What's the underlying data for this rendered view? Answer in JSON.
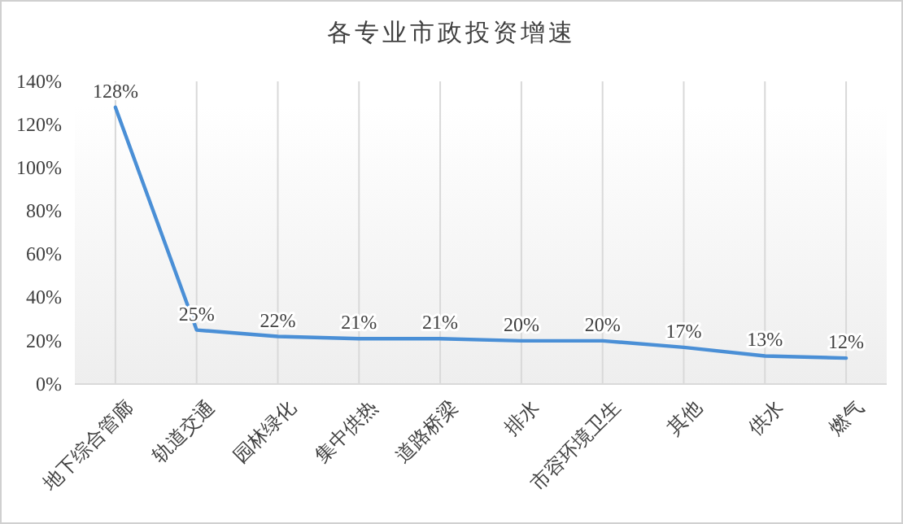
{
  "chart_data": {
    "type": "line",
    "title": "各专业市政投资增速",
    "categories": [
      "地下综合管廊",
      "轨道交通",
      "园林绿化",
      "集中供热",
      "道路桥梁",
      "排水",
      "市容环境卫生",
      "其他",
      "供水",
      "燃气"
    ],
    "series": [
      {
        "color": "#4a8fd6",
        "values": [
          128,
          25,
          22,
          21,
          21,
          20,
          20,
          17,
          13,
          12
        ],
        "value_labels": [
          "128%",
          "25%",
          "22%",
          "21%",
          "21%",
          "20%",
          "20%",
          "17%",
          "13%",
          "12%"
        ]
      }
    ],
    "ylim": [
      0,
      140
    ],
    "yticks": [
      {
        "value": 0,
        "label": "0%"
      },
      {
        "value": 20,
        "label": "20%"
      },
      {
        "value": 40,
        "label": "40%"
      },
      {
        "value": 60,
        "label": "60%"
      },
      {
        "value": 80,
        "label": "80%"
      },
      {
        "value": 100,
        "label": "100%"
      },
      {
        "value": 120,
        "label": "120%"
      },
      {
        "value": 140,
        "label": "140%"
      }
    ],
    "grid": "x",
    "marker": "none",
    "line_style": "solid"
  }
}
